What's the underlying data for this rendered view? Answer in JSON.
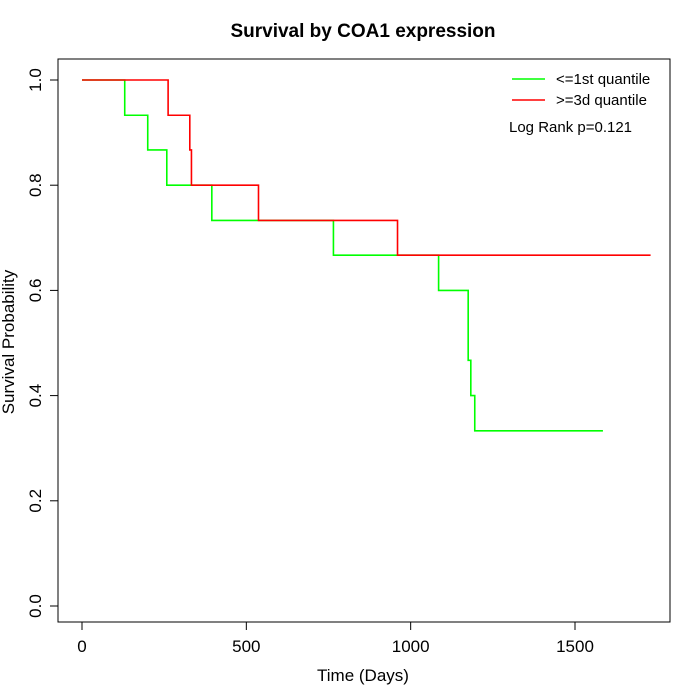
{
  "chart_data": {
    "type": "line",
    "title": "Survival by COA1 expression",
    "xlabel": "Time (Days)",
    "ylabel": "Survival Probability",
    "xlim": [
      0,
      1730
    ],
    "ylim": [
      0,
      1.0
    ],
    "xticks": [
      0,
      500,
      1000,
      1500
    ],
    "yticks": [
      0.0,
      0.2,
      0.4,
      0.6,
      0.8,
      1.0
    ],
    "xtick_labels": [
      "0",
      "500",
      "1000",
      "1500"
    ],
    "ytick_labels": [
      "0.0",
      "0.2",
      "0.4",
      "0.6",
      "0.8",
      "1.0"
    ],
    "step": true,
    "grid": false,
    "legend_position": "top-right",
    "annotation": "Log Rank p=0.121",
    "series": [
      {
        "name": "<=1st quantile",
        "color": "#00ff00",
        "x": [
          0,
          130,
          200,
          258,
          395,
          765,
          1085,
          1175,
          1183,
          1195,
          1585
        ],
        "y": [
          1.0,
          0.933,
          0.867,
          0.8,
          0.733,
          0.667,
          0.6,
          0.467,
          0.4,
          0.333,
          0.333
        ]
      },
      {
        "name": ">=3d quantile",
        "color": "#ff0000",
        "x": [
          0,
          262,
          328,
          333,
          537,
          960,
          1730
        ],
        "y": [
          1.0,
          0.933,
          0.867,
          0.8,
          0.733,
          0.667,
          0.667
        ]
      }
    ]
  }
}
